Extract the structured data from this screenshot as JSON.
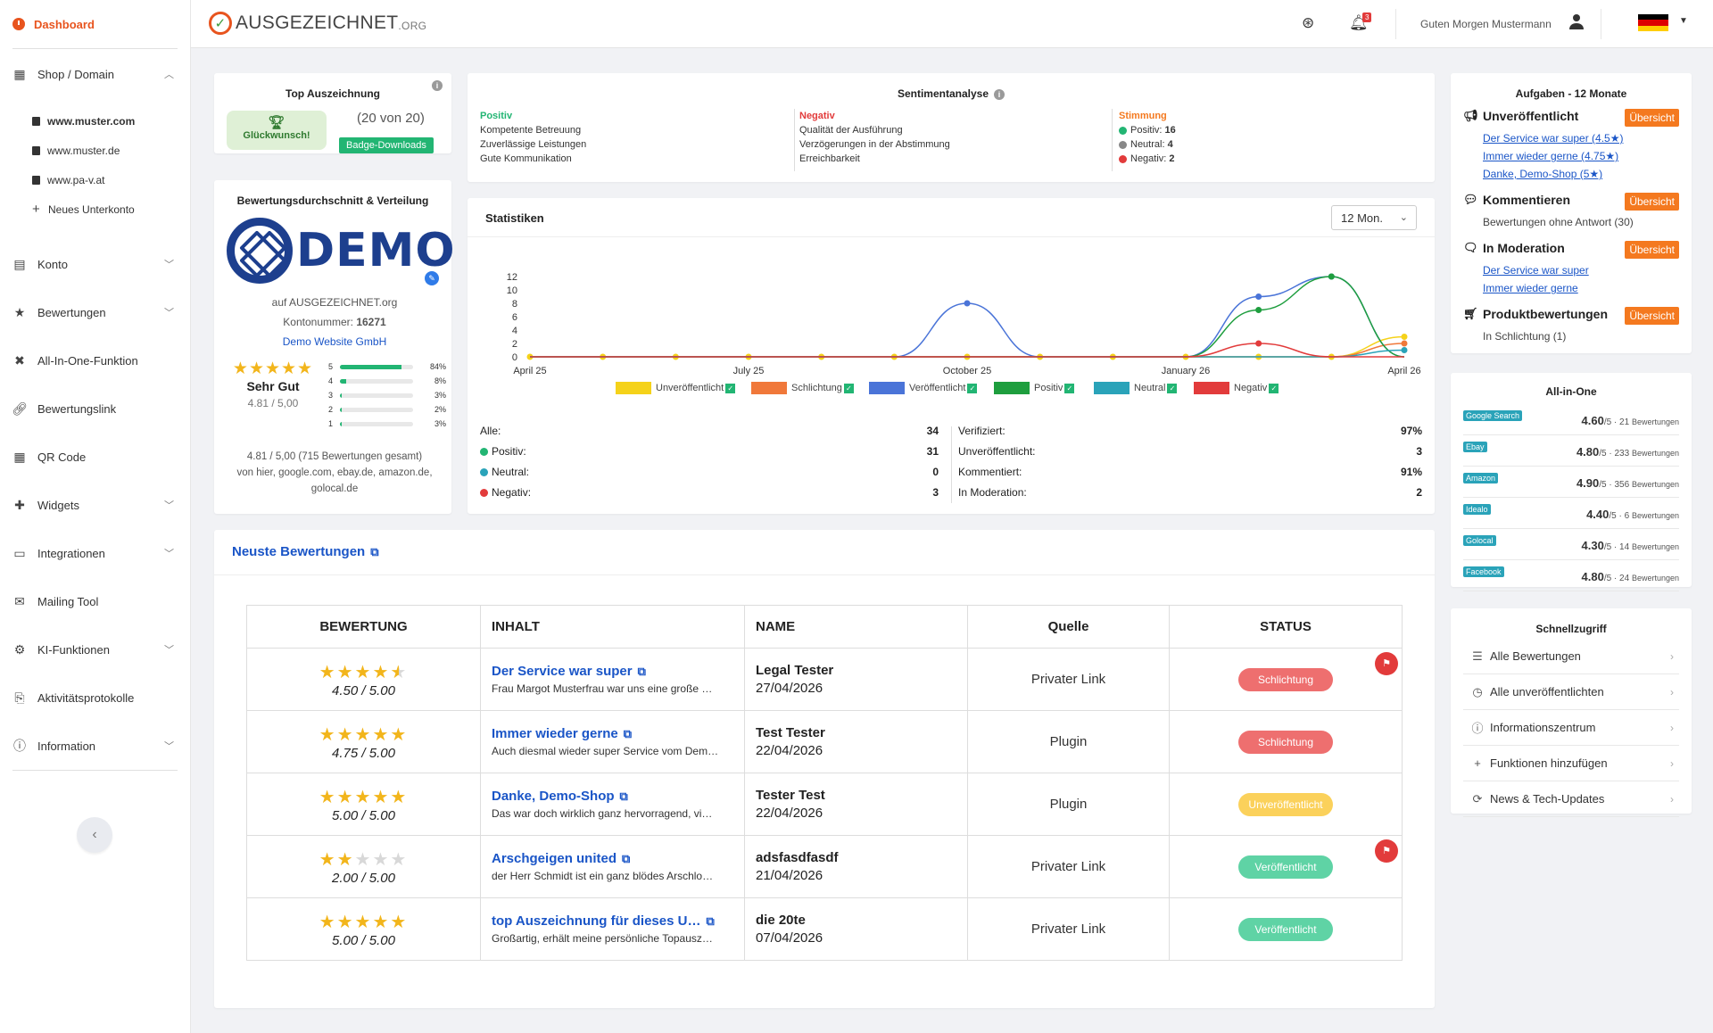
{
  "sidebar": {
    "dashboard": "Dashboard",
    "shop_domain": "Shop / Domain",
    "domains": [
      "www.muster.com",
      "www.muster.de",
      "www.pa-v.at"
    ],
    "new_subaccount": "Neues Unterkonto",
    "items": [
      {
        "label": "Konto",
        "icon": "id-card-icon",
        "chev": true
      },
      {
        "label": "Bewertungen",
        "icon": "star-icon",
        "chev": true
      },
      {
        "label": "All-In-One-Funktion",
        "icon": "arrows-icon",
        "chev": false
      },
      {
        "label": "Bewertungslink",
        "icon": "link-icon",
        "chev": false
      },
      {
        "label": "QR Code",
        "icon": "qr-icon",
        "chev": false
      },
      {
        "label": "Widgets",
        "icon": "puzzle-icon",
        "chev": true
      },
      {
        "label": "Integrationen",
        "icon": "laptop-icon",
        "chev": true
      },
      {
        "label": "Mailing Tool",
        "icon": "mail-icon",
        "chev": false
      },
      {
        "label": "KI-Funktionen",
        "icon": "robot-icon",
        "chev": true
      },
      {
        "label": "Aktivitätsprotokolle",
        "icon": "log-icon",
        "chev": false
      },
      {
        "label": "Information",
        "icon": "info-icon",
        "chev": true
      }
    ]
  },
  "header": {
    "logo_text": "AUSGEZEICHNET",
    "logo_suffix": ".ORG",
    "notification_count": "3",
    "greeting": "Guten Morgen Mustermann"
  },
  "top_award": {
    "title": "Top Auszeichnung",
    "congrats": "Glückwunsch!",
    "count": "(20 von 20)",
    "badge_button": "Badge-Downloads"
  },
  "rating": {
    "title": "Bewertungsdurchschnitt & Verteilung",
    "logo_word": "DEMO",
    "on": "auf AUSGEZEICHNET.org",
    "account_label": "Kontonummer:",
    "account_number": "16271",
    "company": "Demo Website GmbH",
    "grade": "Sehr Gut",
    "score": "4.81 / 5,00",
    "distribution": [
      {
        "star": "5",
        "pct": "84%",
        "value": 84
      },
      {
        "star": "4",
        "pct": "8%",
        "value": 8
      },
      {
        "star": "3",
        "pct": "3%",
        "value": 3
      },
      {
        "star": "2",
        "pct": "2%",
        "value": 2
      },
      {
        "star": "1",
        "pct": "3%",
        "value": 3
      }
    ],
    "summary": "4.81 / 5,00 (715 Bewertungen gesamt)",
    "sources": "von hier, google.com, ebay.de, amazon.de,",
    "sources2": "golocal.de"
  },
  "sentiment": {
    "title": "Sentimentanalyse",
    "positive_label": "Positiv",
    "positive": [
      "Kompetente Betreuung",
      "Zuverlässige Leistungen",
      "Gute Kommunikation"
    ],
    "negative_label": "Negativ",
    "negative": [
      "Qualität der Ausführung",
      "Verzögerungen in der Abstimmung",
      "Erreichbarkeit"
    ],
    "mood_label": "Stimmung",
    "mood": [
      {
        "label": "Positiv:",
        "value": "16",
        "color": "#22b573"
      },
      {
        "label": "Neutral:",
        "value": "4",
        "color": "#888888"
      },
      {
        "label": "Negativ:",
        "value": "2",
        "color": "#e23b3b"
      }
    ]
  },
  "stats": {
    "title": "Statistiken",
    "period": "12 Mon.",
    "rows_left": [
      {
        "label": "Alle:",
        "value": "34",
        "dot": ""
      },
      {
        "label": "Positiv:",
        "value": "31",
        "dot": "#22b573"
      },
      {
        "label": "Neutral:",
        "value": "0",
        "dot": "#2aa3b9"
      },
      {
        "label": "Negativ:",
        "value": "3",
        "dot": "#e23b3b"
      }
    ],
    "rows_right": [
      {
        "label": "Verifiziert:",
        "value": "97%"
      },
      {
        "label": "Unveröffentlicht:",
        "value": "3"
      },
      {
        "label": "Kommentiert:",
        "value": "91%"
      },
      {
        "label": "In Moderation:",
        "value": "2"
      }
    ]
  },
  "chart_data": {
    "type": "line",
    "x": [
      "April 25",
      "May 25",
      "June 25",
      "July 25",
      "August 25",
      "September 25",
      "October 25",
      "November 25",
      "December 25",
      "January 26",
      "February 26",
      "March 26",
      "April 26"
    ],
    "x_tick_labels": [
      "April 25",
      "July 25",
      "October 25",
      "January 26",
      "April 26"
    ],
    "y_ticks": [
      "0",
      "2",
      "4",
      "6",
      "8",
      "10",
      "12"
    ],
    "ylim": [
      0,
      12
    ],
    "series": [
      {
        "name": "Unveröffentlicht",
        "color": "#f5d21a",
        "values": [
          0,
          0,
          0,
          0,
          0,
          0,
          0,
          0,
          0,
          0,
          0,
          0,
          3
        ]
      },
      {
        "name": "Schlichtung",
        "color": "#f0783a",
        "values": [
          0,
          0,
          0,
          0,
          0,
          0,
          0,
          0,
          0,
          0,
          0,
          0,
          2
        ]
      },
      {
        "name": "Veröffentlicht",
        "color": "#4a74d8",
        "values": [
          0,
          0,
          0,
          0,
          0,
          0,
          8,
          0,
          0,
          0,
          9,
          12,
          0
        ]
      },
      {
        "name": "Positiv",
        "color": "#1e9e3e",
        "values": [
          0,
          0,
          0,
          0,
          0,
          0,
          0,
          0,
          0,
          0,
          7,
          12,
          0
        ]
      },
      {
        "name": "Neutral",
        "color": "#2aa3b9",
        "values": [
          0,
          0,
          0,
          0,
          0,
          0,
          0,
          0,
          0,
          0,
          0,
          0,
          1
        ]
      },
      {
        "name": "Negativ",
        "color": "#e23b3b",
        "values": [
          0,
          0,
          0,
          0,
          0,
          0,
          0,
          0,
          0,
          0,
          2,
          0,
          0
        ]
      }
    ],
    "legend_position": "bottom"
  },
  "tasks": {
    "title": "Aufgaben - 12 Monate",
    "overview": "Übersicht",
    "unpublished": "Unveröffentlicht",
    "unpublished_links": [
      "Der Service war super (4.5★)",
      "Immer wieder gerne (4.75★)",
      "Danke, Demo-Shop (5★)"
    ],
    "comments": "Kommentieren",
    "comments_text": "Bewertungen ohne Antwort (30)",
    "moderation": "In Moderation",
    "moderation_links": [
      "Der Service war super",
      "Immer wieder gerne"
    ],
    "product": "Produktbewertungen",
    "product_text": "In Schlichtung (1)"
  },
  "all_in_one": {
    "title": "All-in-One",
    "rows": [
      {
        "source": "Google Search",
        "score": "4.60",
        "rest": "/5 · 21 ",
        "unit": "Bewertungen",
        "rating": 4.6,
        "count": 21
      },
      {
        "source": "Ebay",
        "score": "4.80",
        "rest": "/5 · 233 ",
        "unit": "Bewertungen",
        "rating": 4.8,
        "count": 233
      },
      {
        "source": "Amazon",
        "score": "4.90",
        "rest": "/5 · 356 ",
        "unit": "Bewertungen",
        "rating": 4.9,
        "count": 356
      },
      {
        "source": "Idealo",
        "score": "4.40",
        "rest": "/5 · 6 ",
        "unit": "Bewertungen",
        "rating": 4.4,
        "count": 6
      },
      {
        "source": "Golocal",
        "score": "4.30",
        "rest": "/5 · 14 ",
        "unit": "Bewertungen",
        "rating": 4.3,
        "count": 14
      },
      {
        "source": "Facebook",
        "score": "4.80",
        "rest": "/5 · 24 ",
        "unit": "Bewertungen",
        "rating": 4.8,
        "count": 24
      }
    ]
  },
  "quick": {
    "title": "Schnellzugriff",
    "items": [
      {
        "label": "Alle Bewertungen",
        "icon": "list-icon"
      },
      {
        "label": "Alle unveröffentlichten",
        "icon": "clock-icon"
      },
      {
        "label": "Informationszentrum",
        "icon": "info-icon"
      },
      {
        "label": "Funktionen hinzufügen",
        "icon": "plus-icon"
      },
      {
        "label": "News & Tech-Updates",
        "icon": "refresh-icon"
      }
    ]
  },
  "reviews": {
    "title": "Neuste Bewertungen",
    "headers": [
      "BEWERTUNG",
      "INHALT",
      "NAME",
      "Quelle",
      "STATUS"
    ],
    "rows": [
      {
        "stars": 4.5,
        "score": "4.50 / 5.00",
        "title": "Der Service war super",
        "snippet": "Frau Margot Musterfrau war uns eine große …",
        "name": "Legal Tester",
        "date": "27/04/2026",
        "source": "Privater Link",
        "status": "Schlichtung",
        "status_color": "#ee6f6f",
        "flag": true
      },
      {
        "stars": 5,
        "score": "4.75 / 5.00",
        "title": "Immer wieder gerne",
        "snippet": "Auch diesmal wieder super Service vom Dem…",
        "name": "Test Tester",
        "date": "22/04/2026",
        "source": "Plugin",
        "status": "Schlichtung",
        "status_color": "#ee6f6f",
        "flag": false
      },
      {
        "stars": 5,
        "score": "5.00 / 5.00",
        "title": "Danke, Demo-Shop",
        "snippet": "Das war doch wirklich ganz hervorragend, vi…",
        "name": "Tester Test",
        "date": "22/04/2026",
        "source": "Plugin",
        "status": "Unveröffentlicht",
        "status_color": "#fbd15b",
        "flag": false
      },
      {
        "stars": 2,
        "score": "2.00 / 5.00",
        "title": "Arschgeigen united",
        "snippet": "der Herr Schmidt ist ein ganz blödes Arschlo…",
        "name": "adsfasdfasdf",
        "date": "21/04/2026",
        "source": "Privater Link",
        "status": "Veröffentlicht",
        "status_color": "#5fd3a5",
        "flag": true
      },
      {
        "stars": 5,
        "score": "5.00 / 5.00",
        "title": "top Auszeichnung für dieses U…",
        "snippet": "Großartig, erhält meine persönliche Topausz…",
        "name": "die 20te",
        "date": "07/04/2026",
        "source": "Privater Link",
        "status": "Veröffentlicht",
        "status_color": "#5fd3a5",
        "flag": false
      }
    ]
  }
}
